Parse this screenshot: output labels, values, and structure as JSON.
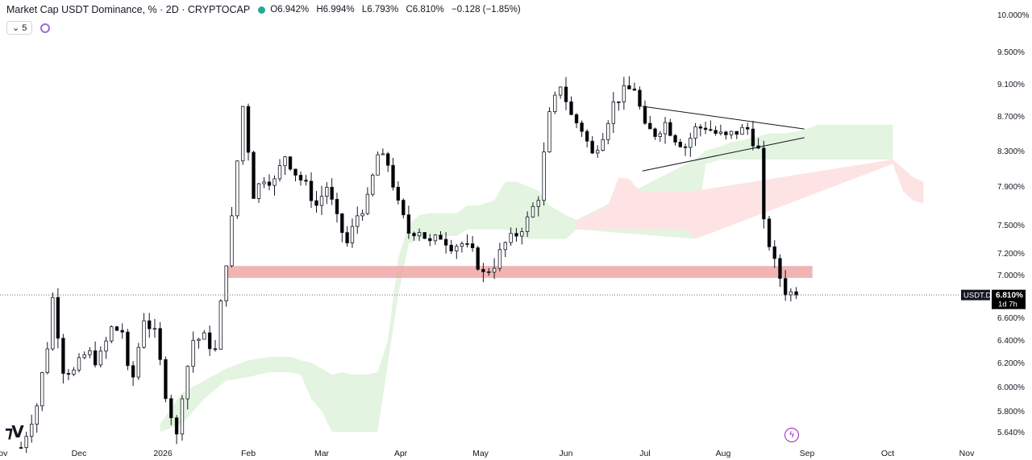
{
  "header": {
    "title": "Market Cap USDT Dominance, % · 2D · CRYPTOCAP",
    "open": "O6.942%",
    "high": "H6.994%",
    "low": "L6.793%",
    "close": "C6.810%",
    "change": "−0.128 (−1.85%)",
    "indicator_count": "⌄ 5"
  },
  "price_label": {
    "symbol": "USDT.D",
    "value": "6.810%",
    "countdown": "1d 7h"
  },
  "colors": {
    "up": "#ffffff",
    "down": "#000000",
    "cloud_green": "#e3f4e0",
    "cloud_red": "#fde3e3",
    "zone": "#efa7a7"
  },
  "icons": {
    "logo": "tradingview-logo-icon",
    "bolt": "lightning-icon",
    "spinner": "loading-icon"
  },
  "chart_data": {
    "type": "candlestick",
    "y_ticks": [
      "10.000%",
      "9.500%",
      "9.100%",
      "8.700%",
      "8.300%",
      "7.900%",
      "7.500%",
      "7.200%",
      "7.000%",
      "6.600%",
      "6.400%",
      "6.200%",
      "6.000%",
      "5.800%",
      "5.640%"
    ],
    "y_tick_values": [
      10.0,
      9.5,
      9.1,
      8.7,
      8.3,
      7.9,
      7.5,
      7.2,
      7.0,
      6.6,
      6.4,
      6.2,
      6.0,
      5.8,
      5.64
    ],
    "x_ticks": [
      "Nov",
      "Dec",
      "2026",
      "Feb",
      "Mar",
      "Apr",
      "May",
      "Jun",
      "Jul",
      "Aug",
      "Sep",
      "Oct",
      "Nov"
    ],
    "x_tick_days": [
      0,
      30,
      61,
      92,
      120,
      151,
      181,
      212,
      242,
      273,
      304,
      334,
      365
    ],
    "current_value": 6.81,
    "support_zone": [
      6.97,
      7.08
    ],
    "triangle_upper": [
      {
        "day": 241,
        "v": 8.82
      },
      {
        "day": 303,
        "v": 8.55
      }
    ],
    "triangle_lower": [
      {
        "day": 241,
        "v": 8.07
      },
      {
        "day": 303,
        "v": 8.45
      }
    ],
    "candle_points": [
      [
        8,
        5.52
      ],
      [
        14,
        5.85
      ],
      [
        18,
        6.35
      ],
      [
        20,
        6.78
      ],
      [
        24,
        6.15
      ],
      [
        28,
        6.12
      ],
      [
        33,
        6.3
      ],
      [
        37,
        6.2
      ],
      [
        42,
        6.5
      ],
      [
        46,
        6.48
      ],
      [
        49,
        5.95
      ],
      [
        54,
        6.6
      ],
      [
        58,
        6.45
      ],
      [
        62,
        5.95
      ],
      [
        66,
        5.6
      ],
      [
        68,
        5.95
      ],
      [
        72,
        6.4
      ],
      [
        76,
        6.42
      ],
      [
        80,
        6.3
      ],
      [
        86,
        7.55
      ],
      [
        90,
        8.82
      ],
      [
        94,
        7.82
      ],
      [
        98,
        8.0
      ],
      [
        102,
        7.95
      ],
      [
        106,
        8.25
      ],
      [
        110,
        8.05
      ],
      [
        114,
        7.9
      ],
      [
        118,
        7.7
      ],
      [
        122,
        7.9
      ],
      [
        126,
        7.55
      ],
      [
        130,
        7.3
      ],
      [
        134,
        7.6
      ],
      [
        138,
        7.75
      ],
      [
        142,
        8.25
      ],
      [
        146,
        8.15
      ],
      [
        150,
        7.7
      ],
      [
        154,
        7.42
      ],
      [
        158,
        7.45
      ],
      [
        162,
        7.3
      ],
      [
        166,
        7.38
      ],
      [
        170,
        7.28
      ],
      [
        174,
        7.3
      ],
      [
        178,
        7.2
      ],
      [
        182,
        7.0
      ],
      [
        186,
        7.1
      ],
      [
        190,
        7.3
      ],
      [
        194,
        7.4
      ],
      [
        198,
        7.55
      ],
      [
        202,
        7.8
      ],
      [
        206,
        8.7
      ],
      [
        210,
        9.1
      ],
      [
        214,
        8.7
      ],
      [
        218,
        8.55
      ],
      [
        222,
        8.25
      ],
      [
        226,
        8.5
      ],
      [
        230,
        8.85
      ],
      [
        234,
        9.0
      ],
      [
        238,
        9.05
      ],
      [
        242,
        8.55
      ],
      [
        246,
        8.5
      ],
      [
        250,
        8.62
      ],
      [
        254,
        8.45
      ],
      [
        258,
        8.35
      ],
      [
        262,
        8.55
      ],
      [
        266,
        8.58
      ],
      [
        270,
        8.5
      ],
      [
        274,
        8.45
      ],
      [
        278,
        8.52
      ],
      [
        282,
        8.55
      ],
      [
        286,
        8.3
      ],
      [
        288,
        7.5
      ],
      [
        292,
        7.1
      ],
      [
        296,
        6.85
      ],
      [
        300,
        6.81
      ]
    ],
    "cloud_green": [
      [
        60,
        5.64,
        5.7
      ],
      [
        68,
        5.7,
        5.95
      ],
      [
        76,
        5.9,
        6.05
      ],
      [
        84,
        6.05,
        6.15
      ],
      [
        92,
        6.08,
        6.22
      ],
      [
        100,
        6.12,
        6.25
      ],
      [
        108,
        6.12,
        6.25
      ],
      [
        112,
        6.1,
        6.22
      ],
      [
        116,
        5.9,
        6.2
      ],
      [
        120,
        5.8,
        6.15
      ],
      [
        124,
        5.64,
        6.1
      ],
      [
        128,
        5.64,
        6.12
      ],
      [
        132,
        5.64,
        6.1
      ],
      [
        138,
        5.64,
        6.1
      ],
      [
        142,
        5.64,
        6.12
      ],
      [
        146,
        6.2,
        6.4
      ],
      [
        150,
        6.8,
        7.15
      ],
      [
        154,
        7.3,
        7.5
      ],
      [
        158,
        7.35,
        7.6
      ],
      [
        162,
        7.38,
        7.62
      ],
      [
        166,
        7.38,
        7.62
      ],
      [
        172,
        7.38,
        7.62
      ],
      [
        176,
        7.45,
        7.7
      ],
      [
        180,
        7.45,
        7.7
      ],
      [
        186,
        7.45,
        7.75
      ],
      [
        190,
        7.45,
        7.95
      ],
      [
        194,
        7.4,
        7.95
      ],
      [
        198,
        7.35,
        7.9
      ],
      [
        202,
        7.35,
        7.85
      ],
      [
        206,
        7.35,
        7.7
      ],
      [
        212,
        7.35,
        7.6
      ],
      [
        216,
        7.45,
        7.55
      ],
      [
        262,
        7.35,
        8.2
      ],
      [
        266,
        8.15,
        8.3
      ],
      [
        272,
        8.2,
        8.35
      ],
      [
        276,
        8.2,
        8.4
      ],
      [
        280,
        8.2,
        8.42
      ],
      [
        284,
        8.2,
        8.45
      ],
      [
        290,
        8.2,
        8.5
      ],
      [
        296,
        8.2,
        8.5
      ],
      [
        300,
        8.2,
        8.52
      ],
      [
        304,
        8.2,
        8.55
      ],
      [
        308,
        8.2,
        8.6
      ],
      [
        314,
        8.2,
        8.6
      ],
      [
        320,
        8.2,
        8.6
      ],
      [
        330,
        8.2,
        8.6
      ],
      [
        336,
        8.2,
        8.6
      ]
    ],
    "cloud_red": [
      [
        216,
        7.45,
        7.55
      ],
      [
        222,
        7.45,
        7.62
      ],
      [
        228,
        7.45,
        7.7
      ],
      [
        232,
        7.45,
        8.0
      ],
      [
        236,
        7.45,
        7.98
      ],
      [
        240,
        7.45,
        7.85
      ],
      [
        250,
        7.45,
        7.85
      ],
      [
        258,
        7.45,
        7.85
      ],
      [
        262,
        7.35,
        7.85
      ],
      [
        336,
        8.15,
        8.2
      ],
      [
        340,
        7.85,
        8.1
      ],
      [
        344,
        7.75,
        8.0
      ],
      [
        348,
        7.72,
        7.95
      ]
    ]
  }
}
